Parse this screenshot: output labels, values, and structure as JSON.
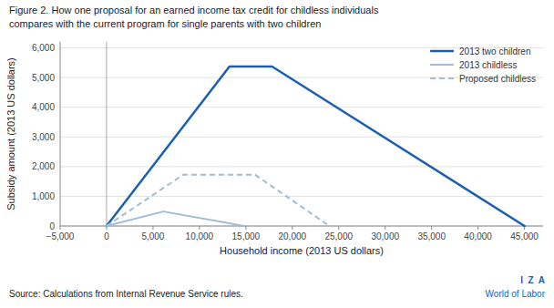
{
  "chart_data": {
    "type": "line",
    "title": "Figure 2. How one proposal for an earned income tax credit for childless individuals",
    "subtitle": "compares with the current program for single parents with two children",
    "xlabel": "Household income (2013 US dollars)",
    "ylabel": "Subsidy amount (2013 US dollars)",
    "annotations": [
      "Source: Calculations from Internal Revenue Service rules.",
      "I  Z  A",
      "World of Labor"
    ],
    "series": [
      {
        "name": "2013 two children",
        "color": "#1a5fb4",
        "line_style": "solid",
        "x": [
          0,
          0,
          13230,
          17820,
          45000
        ],
        "values": [
          0,
          0,
          5372,
          5372,
          0
        ]
      },
      {
        "name": "2013 childless",
        "color": "#a0bcd8",
        "line_style": "solid",
        "x": [
          0,
          0,
          6110,
          14820,
          14820
        ],
        "values": [
          0,
          0,
          487,
          0,
          0
        ]
      },
      {
        "name": "Proposed childless",
        "color": "#a0bcd8",
        "line_style": "dashed",
        "x": [
          0,
          0,
          8240,
          16000,
          24000
        ],
        "values": [
          0,
          0,
          1723,
          1723,
          0
        ]
      }
    ],
    "xlim": [
      -5000,
      47000
    ],
    "ylim": [
      0,
      6200
    ],
    "xticks": [
      {
        "value": -5000,
        "label": "−5,000"
      },
      0,
      {
        "value": 5000,
        "label": "5,000"
      },
      {
        "value": 10000,
        "label": "10,000"
      },
      {
        "value": 15000,
        "label": "15,000"
      },
      {
        "value": 20000,
        "label": "20,000"
      },
      {
        "value": 25000,
        "label": "25,000"
      },
      {
        "value": 30000,
        "label": "30,000"
      },
      {
        "value": 35000,
        "label": "35,000"
      },
      {
        "value": 40000,
        "label": "40,000"
      },
      {
        "value": 45000,
        "label": "45,000"
      }
    ],
    "yticks": [
      0,
      {
        "value": 1000,
        "label": "1,000"
      },
      {
        "value": 2000,
        "label": "2,000"
      },
      {
        "value": 3000,
        "label": "3,000"
      },
      {
        "value": 4000,
        "label": "4,000"
      },
      {
        "value": 5000,
        "label": "5,000"
      },
      {
        "value": 6000,
        "label": "6,000"
      }
    ],
    "grid": true,
    "legend": "upper right"
  }
}
